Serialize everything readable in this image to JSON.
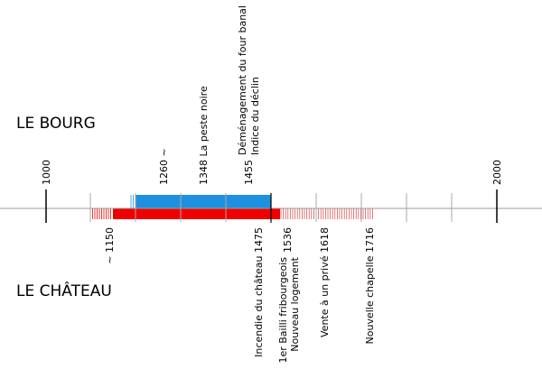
{
  "sections": {
    "top": "LE BOURG",
    "bottom": "LE CHÂTEAU"
  },
  "top_labels": [
    "1000",
    "1260 ~",
    "1348  La peste noire",
    "1455",
    "Déménagement du four banal",
    "Indice du déclin",
    "2000"
  ],
  "bottom_labels": [
    "~ 1150",
    "Incendie du château  1475",
    "1536",
    "1er Bailli fribourgeois",
    "Nouveau logement",
    "Vente à un privé 1618",
    "Nouvelle chapelle 1716"
  ]
}
